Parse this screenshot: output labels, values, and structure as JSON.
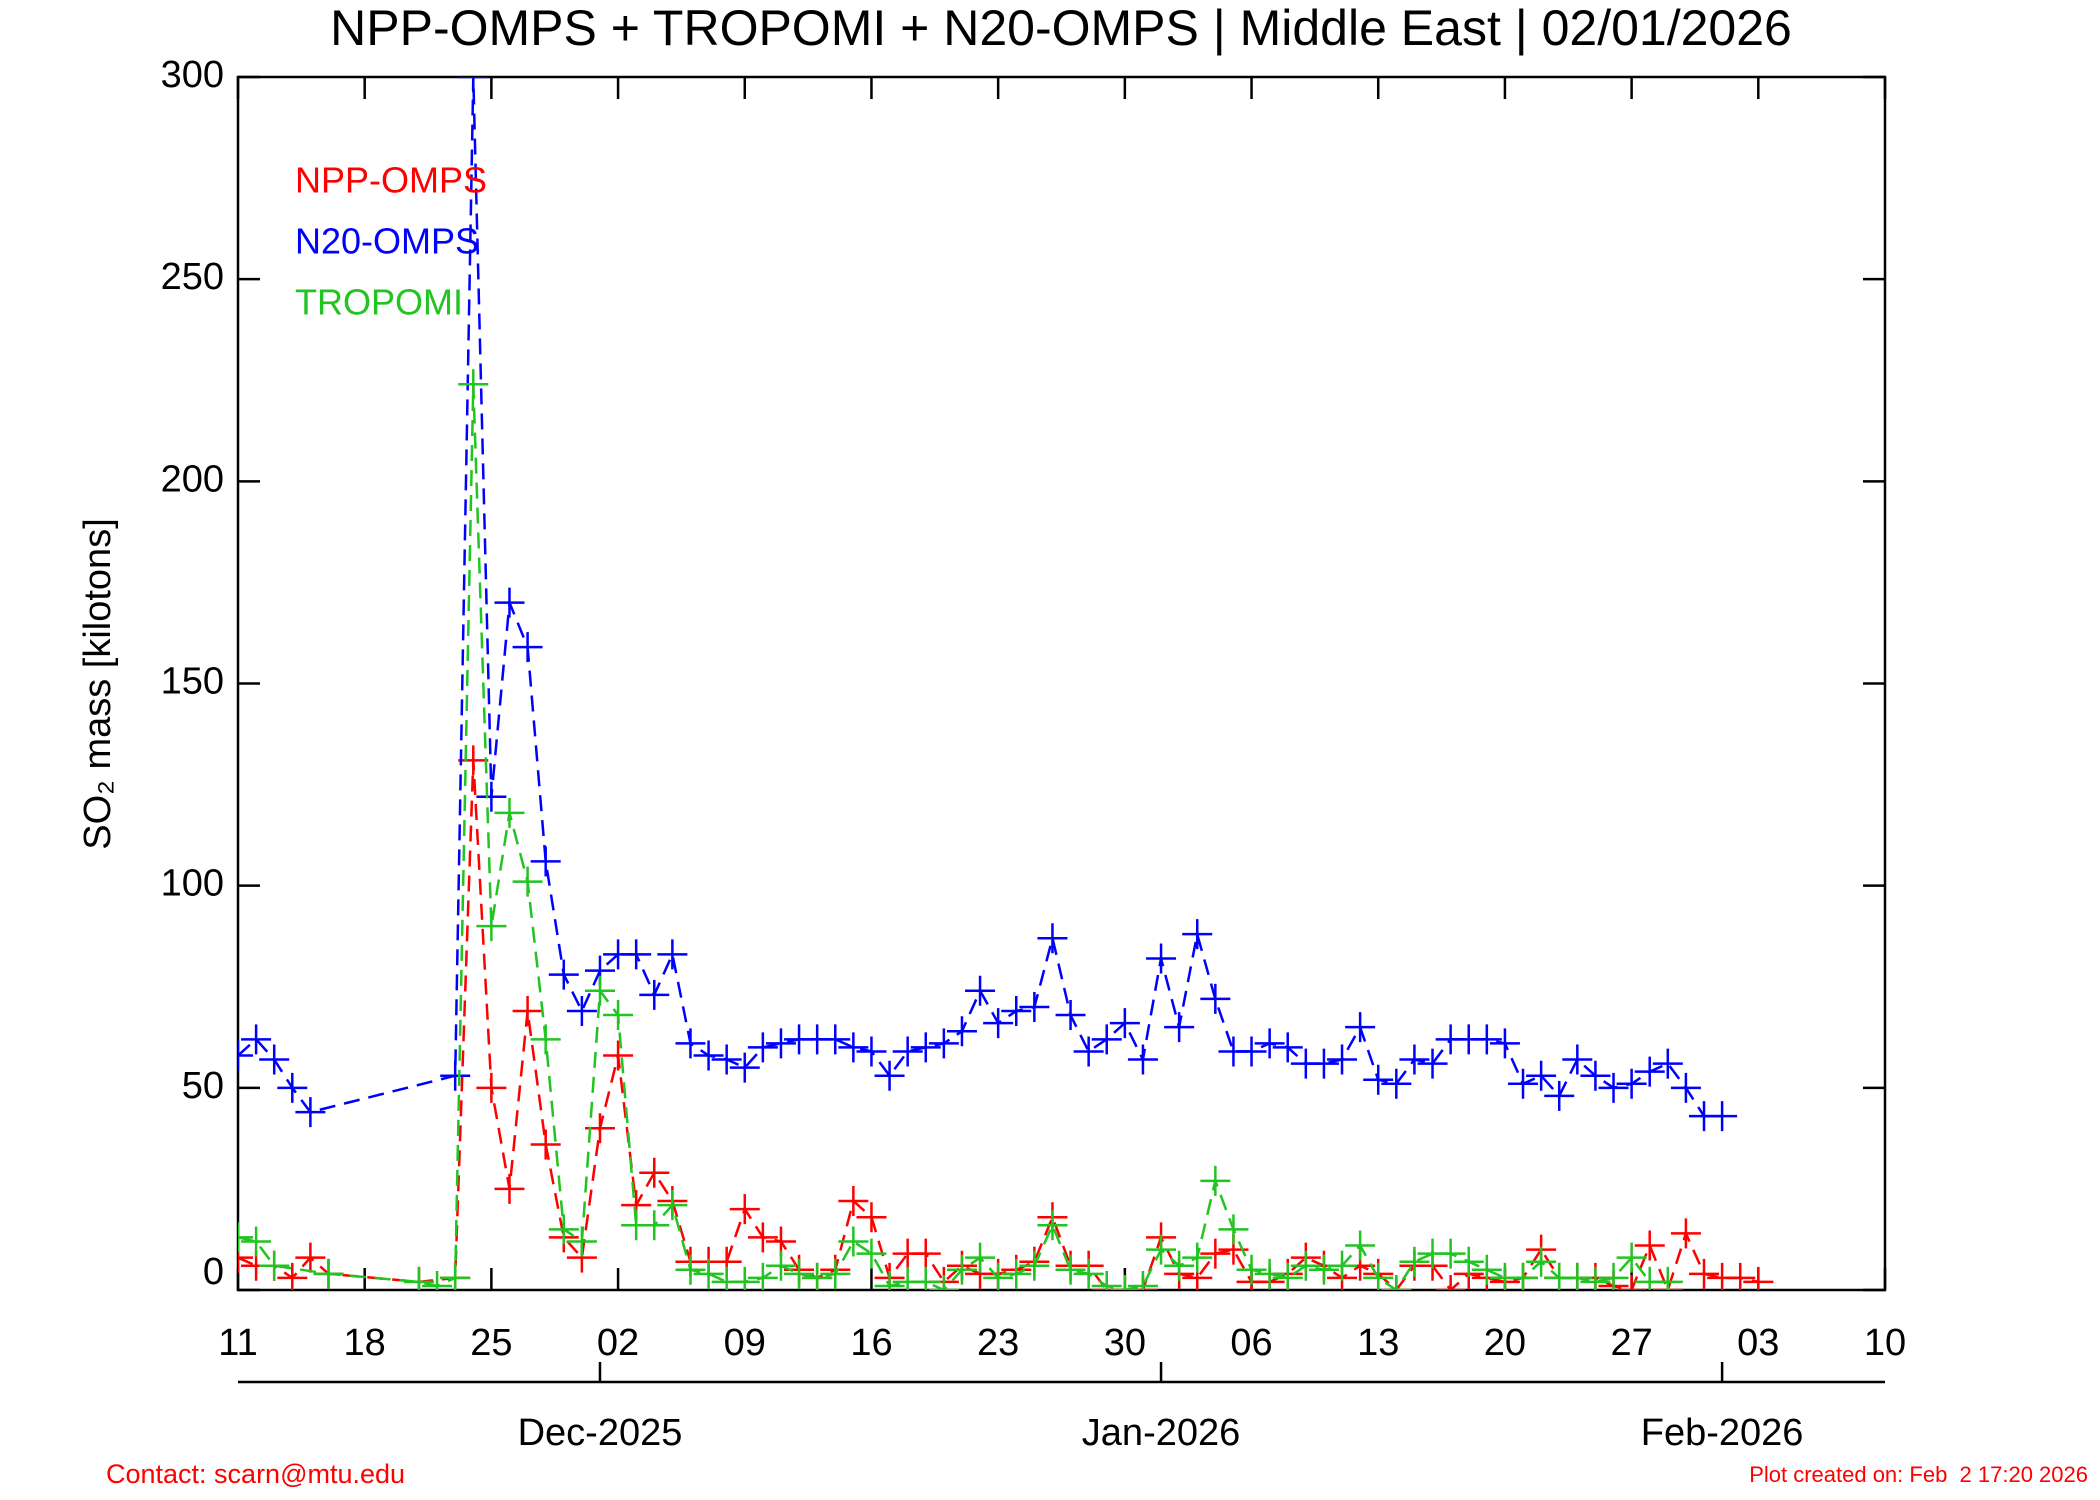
{
  "chart_data": {
    "type": "line",
    "title": "NPP-OMPS + TROPOMI + N20-OMPS | Middle East | 02/01/2026",
    "y_label": "SO₂ mass [kilotons]",
    "footer_left": "Contact: scarn@mtu.edu",
    "footer_right": "Plot created on: Feb  2 17:20 2026",
    "xlim": [
      "2025-11-11",
      "2026-02-10"
    ],
    "xticks": [
      {
        "value": "2025-11-11",
        "label": "11"
      },
      {
        "value": "2025-11-18",
        "label": "18"
      },
      {
        "value": "2025-11-25",
        "label": "25"
      },
      {
        "value": "2025-12-02",
        "label": "02"
      },
      {
        "value": "2025-12-09",
        "label": "09"
      },
      {
        "value": "2025-12-16",
        "label": "16"
      },
      {
        "value": "2025-12-23",
        "label": "23"
      },
      {
        "value": "2025-12-30",
        "label": "30"
      },
      {
        "value": "2026-01-06",
        "label": "06"
      },
      {
        "value": "2026-01-13",
        "label": "13"
      },
      {
        "value": "2026-01-20",
        "label": "20"
      },
      {
        "value": "2026-01-27",
        "label": "27"
      },
      {
        "value": "2026-02-03",
        "label": "03"
      },
      {
        "value": "2026-02-10",
        "label": "10"
      }
    ],
    "month_ticks": [
      {
        "value": "2025-12-01",
        "label": "Dec-2025"
      },
      {
        "value": "2026-01-01",
        "label": "Jan-2026"
      },
      {
        "value": "2026-02-01",
        "label": "Feb-2026"
      }
    ],
    "ylim": [
      0,
      300
    ],
    "yticks": [
      0,
      50,
      100,
      150,
      200,
      250,
      300
    ],
    "legend": "upper left",
    "series": [
      {
        "name": "NPP-OMPS",
        "color": "#ff0000",
        "x": [
          "2025-11-11",
          "2025-11-12",
          "2025-11-13",
          "2025-11-14",
          "2025-11-15",
          "2025-11-16",
          "2025-11-21",
          "2025-11-23",
          "2025-11-24",
          "2025-11-25",
          "2025-11-26",
          "2025-11-27",
          "2025-11-28",
          "2025-11-29",
          "2025-11-30",
          "2025-12-01",
          "2025-12-02",
          "2025-12-03",
          "2025-12-04",
          "2025-12-05",
          "2025-12-06",
          "2025-12-07",
          "2025-12-08",
          "2025-12-09",
          "2025-12-10",
          "2025-12-11",
          "2025-12-12",
          "2025-12-13",
          "2025-12-14",
          "2025-12-15",
          "2025-12-16",
          "2025-12-17",
          "2025-12-18",
          "2025-12-19",
          "2025-12-20",
          "2025-12-21",
          "2025-12-22",
          "2025-12-23",
          "2025-12-24",
          "2025-12-25",
          "2025-12-26",
          "2025-12-27",
          "2025-12-28",
          "2025-12-29",
          "2025-12-30",
          "2025-12-31",
          "2026-01-01",
          "2026-01-02",
          "2026-01-03",
          "2026-01-04",
          "2026-01-05",
          "2026-01-06",
          "2026-01-07",
          "2026-01-08",
          "2026-01-09",
          "2026-01-10",
          "2026-01-11",
          "2026-01-12",
          "2026-01-13",
          "2026-01-14",
          "2026-01-15",
          "2026-01-16",
          "2026-01-17",
          "2026-01-18",
          "2026-01-19",
          "2026-01-20",
          "2026-01-21",
          "2026-01-22",
          "2026-01-23",
          "2026-01-24",
          "2026-01-25",
          "2026-01-26",
          "2026-01-27",
          "2026-01-28",
          "2026-01-29",
          "2026-01-30",
          "2026-01-31",
          "2026-02-01",
          "2026-02-02",
          "2026-02-03"
        ],
        "values": [
          8,
          6,
          6,
          3,
          8,
          4,
          2,
          3,
          131,
          50,
          25,
          69,
          36,
          13,
          8,
          40,
          58,
          21,
          29,
          22,
          7,
          7,
          7,
          20,
          13,
          12,
          5,
          3,
          5,
          22,
          18,
          3,
          9,
          9,
          2,
          6,
          4,
          4,
          5,
          7,
          18,
          6,
          6,
          0,
          0,
          0,
          13,
          4,
          3,
          9,
          10,
          2,
          2,
          4,
          8,
          6,
          3,
          6,
          4,
          0,
          6,
          6,
          0,
          4,
          3,
          2,
          3,
          10,
          3,
          3,
          3,
          1,
          0,
          11,
          0,
          14,
          4,
          3,
          3,
          2
        ]
      },
      {
        "name": "N20-OMPS",
        "color": "#0000ff",
        "x": [
          "2025-11-11",
          "2025-11-12",
          "2025-11-13",
          "2025-11-14",
          "2025-11-15",
          "2025-11-23",
          "2025-11-24",
          "2025-11-25",
          "2025-11-26",
          "2025-11-27",
          "2025-11-28",
          "2025-11-29",
          "2025-11-30",
          "2025-12-01",
          "2025-12-02",
          "2025-12-03",
          "2025-12-04",
          "2025-12-05",
          "2025-12-06",
          "2025-12-07",
          "2025-12-08",
          "2025-12-09",
          "2025-12-10",
          "2025-12-11",
          "2025-12-12",
          "2025-12-13",
          "2025-12-14",
          "2025-12-15",
          "2025-12-16",
          "2025-12-17",
          "2025-12-18",
          "2025-12-19",
          "2025-12-20",
          "2025-12-21",
          "2025-12-22",
          "2025-12-23",
          "2025-12-24",
          "2025-12-25",
          "2025-12-26",
          "2025-12-27",
          "2025-12-28",
          "2025-12-29",
          "2025-12-30",
          "2025-12-31",
          "2026-01-01",
          "2026-01-02",
          "2026-01-03",
          "2026-01-04",
          "2026-01-05",
          "2026-01-06",
          "2026-01-07",
          "2026-01-08",
          "2026-01-09",
          "2026-01-10",
          "2026-01-11",
          "2026-01-12",
          "2026-01-13",
          "2026-01-14",
          "2026-01-15",
          "2026-01-16",
          "2026-01-17",
          "2026-01-18",
          "2026-01-19",
          "2026-01-20",
          "2026-01-21",
          "2026-01-22",
          "2026-01-23",
          "2026-01-24",
          "2026-01-25",
          "2026-01-26",
          "2026-01-27",
          "2026-01-28",
          "2026-01-29",
          "2026-01-30",
          "2026-01-31",
          "2026-02-01"
        ],
        "values": [
          58,
          62,
          57,
          50,
          44,
          53,
          300,
          122,
          170,
          159,
          106,
          78,
          69,
          79,
          83,
          83,
          73,
          83,
          61,
          58,
          57,
          55,
          60,
          61,
          62,
          62,
          62,
          60,
          59,
          53,
          59,
          60,
          61,
          64,
          74,
          66,
          69,
          70,
          87,
          68,
          59,
          62,
          66,
          57,
          82,
          65,
          88,
          72,
          59,
          59,
          61,
          60,
          56,
          56,
          57,
          65,
          52,
          51,
          57,
          56,
          62,
          62,
          62,
          61,
          51,
          53,
          48,
          57,
          53,
          50,
          51,
          54,
          56,
          50,
          43,
          43
        ]
      },
      {
        "name": "TROPOMI",
        "color": "#22c422",
        "x": [
          "2025-11-11",
          "2025-11-12",
          "2025-11-13",
          "2025-11-16",
          "2025-11-21",
          "2025-11-22",
          "2025-11-23",
          "2025-11-24",
          "2025-11-25",
          "2025-11-26",
          "2025-11-27",
          "2025-11-28",
          "2025-11-29",
          "2025-11-30",
          "2025-12-01",
          "2025-12-02",
          "2025-12-03",
          "2025-12-04",
          "2025-12-05",
          "2025-12-06",
          "2025-12-07",
          "2025-12-08",
          "2025-12-09",
          "2025-12-10",
          "2025-12-11",
          "2025-12-12",
          "2025-12-13",
          "2025-12-14",
          "2025-12-15",
          "2025-12-16",
          "2025-12-17",
          "2025-12-18",
          "2025-12-19",
          "2025-12-20",
          "2025-12-21",
          "2025-12-22",
          "2025-12-23",
          "2025-12-24",
          "2025-12-25",
          "2025-12-26",
          "2025-12-27",
          "2025-12-28",
          "2025-12-29",
          "2025-12-30",
          "2025-12-31",
          "2026-01-01",
          "2026-01-02",
          "2026-01-03",
          "2026-01-04",
          "2026-01-05",
          "2026-01-06",
          "2026-01-07",
          "2026-01-08",
          "2026-01-09",
          "2026-01-10",
          "2026-01-11",
          "2026-01-12",
          "2026-01-13",
          "2026-01-14",
          "2026-01-15",
          "2026-01-16",
          "2026-01-17",
          "2026-01-18",
          "2026-01-19",
          "2026-01-20",
          "2026-01-21",
          "2026-01-22",
          "2026-01-23",
          "2026-01-24",
          "2026-01-25",
          "2026-01-26",
          "2026-01-27",
          "2026-01-28",
          "2026-01-29"
        ],
        "values": [
          13,
          12,
          6,
          4,
          2,
          1,
          3,
          224,
          90,
          118,
          101,
          62,
          15,
          12,
          74,
          68,
          16,
          16,
          21,
          5,
          4,
          2,
          2,
          3,
          6,
          4,
          3,
          4,
          12,
          9,
          1,
          2,
          2,
          0,
          5,
          8,
          3,
          4,
          6,
          16,
          5,
          4,
          1,
          0,
          1,
          10,
          6,
          8,
          27,
          15,
          5,
          4,
          3,
          6,
          5,
          6,
          11,
          3,
          0,
          7,
          9,
          9,
          7,
          5,
          3,
          3,
          7,
          3,
          3,
          2,
          3,
          8,
          2,
          2
        ]
      }
    ]
  }
}
